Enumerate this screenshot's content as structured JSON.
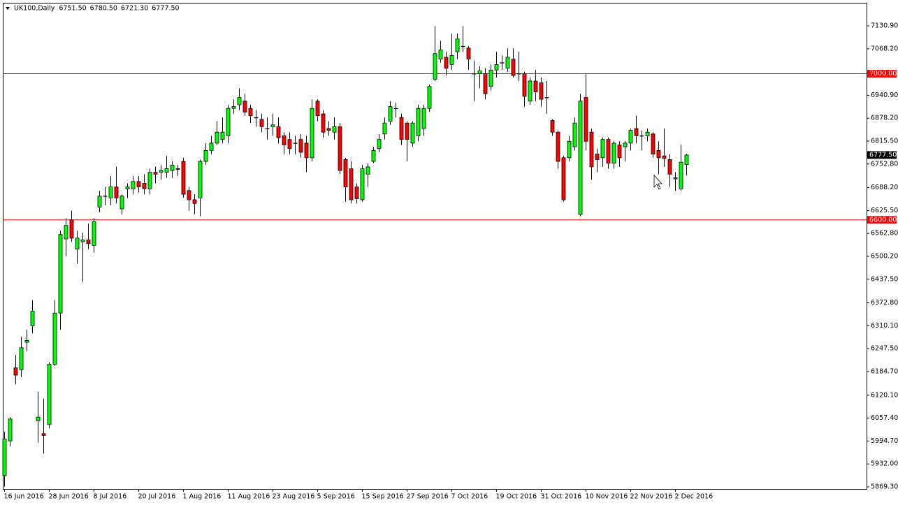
{
  "chart_data": {
    "type": "candlestick",
    "title": "UK100,Daily",
    "title_values": [
      "6751.50",
      "6780.50",
      "6721.30",
      "6777.50"
    ],
    "categories": [
      "16 Jun 2016",
      null,
      null,
      null,
      null,
      null,
      null,
      null,
      "28 Jun 2016",
      null,
      null,
      null,
      null,
      null,
      null,
      null,
      "8 Jul 2016",
      null,
      null,
      null,
      null,
      null,
      null,
      null,
      "20 Jul 2016",
      null,
      null,
      null,
      null,
      null,
      null,
      null,
      "1 Aug 2016",
      null,
      null,
      null,
      null,
      null,
      null,
      null,
      "11 Aug 2016",
      null,
      null,
      null,
      null,
      null,
      null,
      null,
      "23 Aug 2016",
      null,
      null,
      null,
      null,
      null,
      null,
      null,
      "5 Sep 2016",
      null,
      null,
      null,
      null,
      null,
      null,
      null,
      "15 Sep 2016",
      null,
      null,
      null,
      null,
      null,
      null,
      null,
      "27 Sep 2016",
      null,
      null,
      null,
      null,
      null,
      null,
      null,
      "7 Oct 2016",
      null,
      null,
      null,
      null,
      null,
      null,
      null,
      "19 Oct 2016",
      null,
      null,
      null,
      null,
      null,
      null,
      null,
      "31 Oct 2016",
      null,
      null,
      null,
      null,
      null,
      null,
      null,
      "10 Nov 2016",
      null,
      null,
      null,
      null,
      null,
      null,
      null,
      "22 Nov 2016",
      null,
      null,
      null,
      null,
      null,
      null,
      null,
      "2 Dec 2016",
      null,
      null
    ],
    "open": [
      5900,
      5995,
      6195,
      6190,
      6265,
      6310,
      6050,
      6015,
      6040,
      6205,
      6345,
      6548,
      6600,
      6520,
      6540,
      6545,
      6530,
      6635,
      6665,
      6660,
      6690,
      6630,
      6685,
      6685,
      6705,
      6700,
      6685,
      6730,
      6730,
      6730,
      6735,
      6740,
      6760,
      6680,
      6655,
      6660,
      6760,
      6790,
      6810,
      6820,
      6830,
      6905,
      6915,
      6925,
      6905,
      6880,
      6875,
      6850,
      6855,
      6855,
      6830,
      6820,
      6810,
      6820,
      6810,
      6770,
      6925,
      6890,
      6850,
      6840,
      6855,
      6765,
      6740,
      6690,
      6655,
      6725,
      6760,
      6795,
      6835,
      6870,
      6905,
      6880,
      6865,
      6810,
      6830,
      6850,
      6905,
      6985,
      7040,
      7045,
      7025,
      7060,
      7075,
      7070,
      7000,
      7000,
      7000,
      6965,
      7010,
      7030,
      7015,
      7040,
      7000,
      7000,
      6925,
      6980,
      6975,
      6935,
      6872,
      6840,
      6770,
      6770,
      6800,
      6615,
      6935,
      6840,
      6780,
      6770,
      6820,
      6755,
      6805,
      6800,
      6810,
      6850,
      6830,
      6830,
      6835,
      6790,
      6775,
      6765,
      6715,
      6685,
      6751.5
    ],
    "high": [
      6020,
      6060,
      6230,
      6280,
      6300,
      6380,
      6130,
      6110,
      6210,
      6380,
      6570,
      6605,
      6625,
      6570,
      6565,
      6590,
      6605,
      6680,
      6690,
      6720,
      6745,
      6670,
      6700,
      6720,
      6720,
      6725,
      6740,
      6745,
      6750,
      6775,
      6760,
      6750,
      6770,
      6690,
      6670,
      6765,
      6810,
      6830,
      6870,
      6880,
      6915,
      6930,
      6960,
      6945,
      6915,
      6900,
      6890,
      6880,
      6890,
      6880,
      6840,
      6840,
      6830,
      6835,
      6830,
      6930,
      6930,
      6900,
      6870,
      6880,
      6865,
      6770,
      6760,
      6700,
      6750,
      6755,
      6800,
      6835,
      6880,
      6925,
      6920,
      6890,
      6870,
      6870,
      6915,
      6915,
      6970,
      7130,
      7090,
      7060,
      7110,
      7110,
      7130,
      7075,
      7035,
      7020,
      7015,
      7025,
      7060,
      7050,
      7070,
      7070,
      7060,
      7005,
      6990,
      7010,
      6990,
      6980,
      6875,
      6845,
      6775,
      6830,
      6880,
      6945,
      7000,
      6850,
      6795,
      6825,
      6825,
      6815,
      6815,
      6815,
      6850,
      6885,
      6845,
      6850,
      6840,
      6815,
      6850,
      6780,
      6730,
      6805,
      6780.5
    ],
    "low": [
      5870,
      5980,
      6150,
      6170,
      6240,
      6290,
      5990,
      5960,
      6030,
      6200,
      6300,
      6500,
      6540,
      6480,
      6430,
      6520,
      6510,
      6620,
      6640,
      6640,
      6645,
      6615,
      6660,
      6670,
      6675,
      6670,
      6670,
      6700,
      6710,
      6715,
      6715,
      6720,
      6660,
      6625,
      6615,
      6610,
      6750,
      6780,
      6805,
      6810,
      6810,
      6890,
      6900,
      6885,
      6865,
      6855,
      6840,
      6820,
      6830,
      6810,
      6780,
      6780,
      6780,
      6770,
      6730,
      6760,
      6870,
      6825,
      6830,
      6820,
      6725,
      6650,
      6645,
      6645,
      6650,
      6690,
      6755,
      6785,
      6820,
      6860,
      6880,
      6805,
      6760,
      6800,
      6815,
      6830,
      6895,
      6980,
      7030,
      6995,
      7010,
      7040,
      7060,
      7010,
      6925,
      6960,
      6930,
      6955,
      6990,
      7010,
      7005,
      6990,
      6980,
      6910,
      6915,
      6925,
      6910,
      6890,
      6830,
      6740,
      6650,
      6760,
      6790,
      6610,
      6790,
      6710,
      6730,
      6745,
      6740,
      6740,
      6745,
      6760,
      6790,
      6810,
      6790,
      6815,
      6770,
      6725,
      6745,
      6690,
      6680,
      6680,
      6721.3
    ],
    "close": [
      6000,
      6055,
      6175,
      6250,
      6270,
      6350,
      6060,
      6010,
      6205,
      6345,
      6560,
      6585,
      6550,
      6550,
      6545,
      6535,
      6595,
      6665,
      6665,
      6690,
      6660,
      6665,
      6690,
      6705,
      6690,
      6685,
      6730,
      6725,
      6735,
      6740,
      6750,
      6738,
      6670,
      6655,
      6645,
      6760,
      6790,
      6810,
      6840,
      6840,
      6905,
      6910,
      6935,
      6895,
      6885,
      6880,
      6855,
      6850,
      6860,
      6825,
      6805,
      6795,
      6810,
      6785,
      6770,
      6905,
      6885,
      6840,
      6845,
      6855,
      6735,
      6690,
      6655,
      6658,
      6740,
      6745,
      6790,
      6820,
      6865,
      6910,
      6905,
      6820,
      6820,
      6865,
      6905,
      6905,
      6965,
      7055,
      7065,
      7015,
      7050,
      7095,
      7075,
      7040,
      7000,
      7008,
      6945,
      7010,
      7025,
      7030,
      7045,
      6995,
      7000,
      6938,
      6980,
      6950,
      6930,
      6935,
      6840,
      6760,
      6655,
      6815,
      6865,
      6925,
      6815,
      6745,
      6765,
      6820,
      6755,
      6810,
      6770,
      6810,
      6845,
      6830,
      6830,
      6840,
      6780,
      6770,
      6768,
      6725,
      6712,
      6758,
      6777.5
    ],
    "up_color": "#00ff00",
    "down_color": "#ff0000",
    "ylim": [
      5863.6,
      7192.1
    ],
    "yticks": [
      {
        "value": 7130.9,
        "label": "7130.90"
      },
      {
        "value": 7068.2,
        "label": "7068.20"
      },
      {
        "value": 6940.9,
        "label": "6940.90"
      },
      {
        "value": 6878.2,
        "label": "6878.20"
      },
      {
        "value": 6815.5,
        "label": "6815.50"
      },
      {
        "value": 6752.8,
        "label": "6752.80"
      },
      {
        "value": 6688.2,
        "label": "6688.20"
      },
      {
        "value": 6625.5,
        "label": "6625.50"
      },
      {
        "value": 6562.8,
        "label": "6562.80"
      },
      {
        "value": 6500.2,
        "label": "6500.20"
      },
      {
        "value": 6437.5,
        "label": "6437.50"
      },
      {
        "value": 6372.8,
        "label": "6372.80"
      },
      {
        "value": 6310.1,
        "label": "6310.10"
      },
      {
        "value": 6247.5,
        "label": "6247.50"
      },
      {
        "value": 6184.7,
        "label": "6184.70"
      },
      {
        "value": 6120.1,
        "label": "6120.10"
      },
      {
        "value": 6057.4,
        "label": "6057.40"
      },
      {
        "value": 5994.7,
        "label": "5994.70"
      },
      {
        "value": 5932,
        "label": "5932.00"
      },
      {
        "value": 5869.3,
        "label": "5869.30"
      }
    ],
    "levels": [
      {
        "value": 7000,
        "label": "7000.00"
      },
      {
        "value": 6600,
        "label": "6600.00"
      }
    ],
    "level_color": "#ff0000",
    "last_price": {
      "value": 6777.5,
      "label": "6777.50"
    },
    "grid": false
  }
}
